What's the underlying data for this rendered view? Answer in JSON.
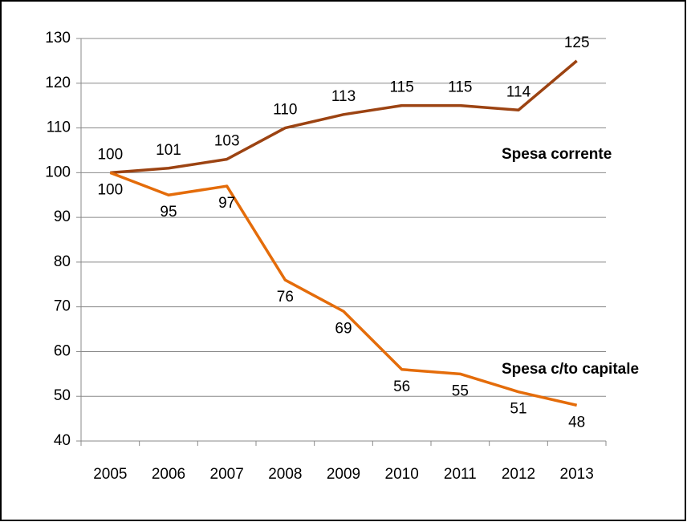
{
  "chart_data": {
    "type": "line",
    "categories": [
      "2005",
      "2006",
      "2007",
      "2008",
      "2009",
      "2010",
      "2011",
      "2012",
      "2013"
    ],
    "series": [
      {
        "name": "Spesa corrente",
        "color": "#9c4312",
        "values": [
          100,
          101,
          103,
          110,
          113,
          115,
          115,
          114,
          125
        ]
      },
      {
        "name": "Spesa c/to capitale",
        "color": "#e46c0a",
        "values": [
          100,
          95,
          97,
          76,
          69,
          56,
          55,
          51,
          48
        ]
      }
    ],
    "ylim": [
      40,
      130
    ],
    "yticks": [
      40,
      50,
      60,
      70,
      80,
      90,
      100,
      110,
      120,
      130
    ],
    "grid": true
  }
}
